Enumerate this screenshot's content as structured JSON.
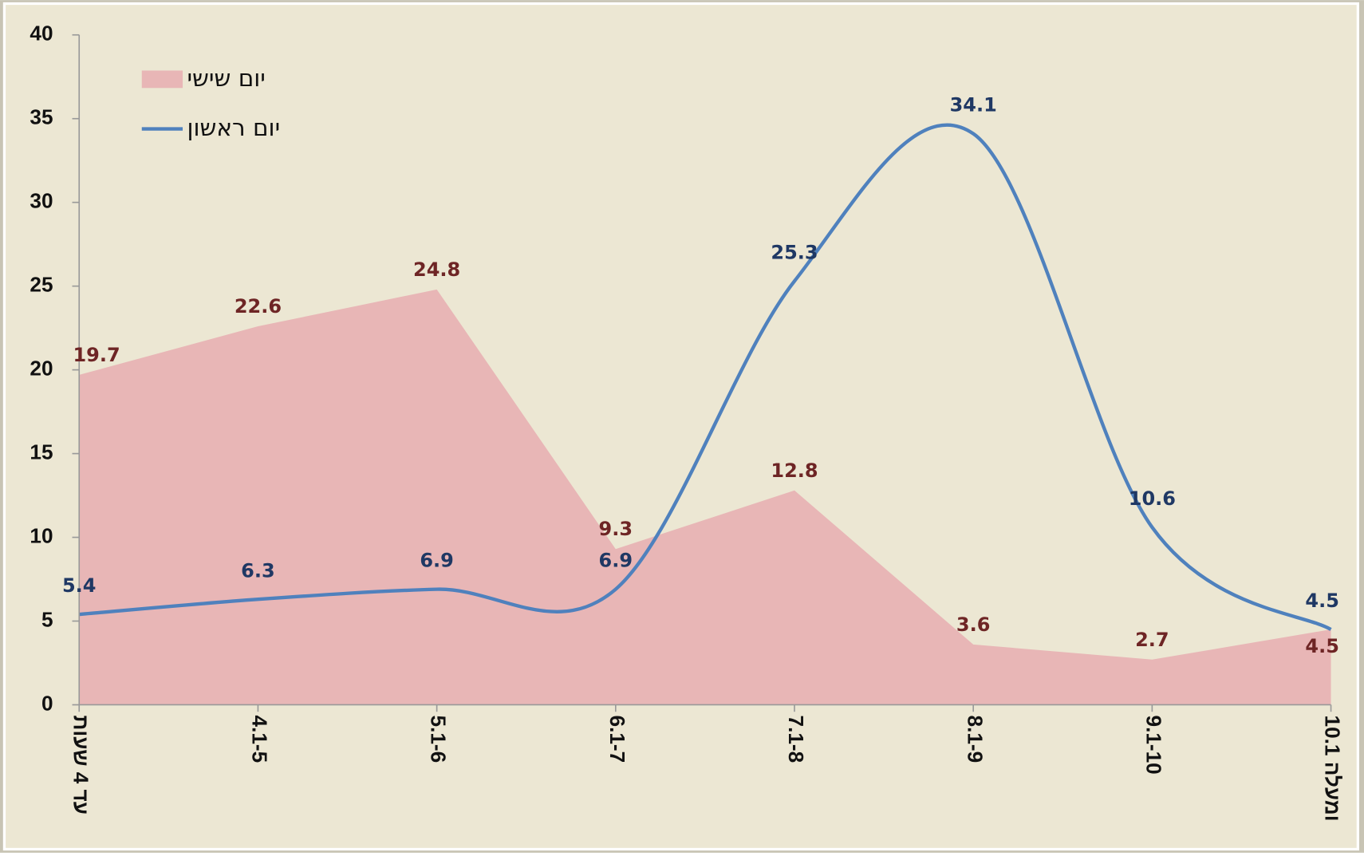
{
  "chart_data": {
    "type": "line",
    "categories": [
      "עד 4 שעות",
      "4.1-5",
      "5.1-6",
      "6.1-7",
      "7.1-8",
      "8.1-9",
      "9.1-10",
      "10.1 ומעלה"
    ],
    "series": [
      {
        "name": "יום שישי",
        "type": "area",
        "color": "#e8b6b6",
        "label_color": "#6e2525",
        "values": [
          19.7,
          22.6,
          24.8,
          9.3,
          12.8,
          3.6,
          2.7,
          4.5
        ]
      },
      {
        "name": "יום ראשון",
        "type": "line",
        "smooth": true,
        "color": "#4f81bd",
        "label_color": "#1f3864",
        "values": [
          5.4,
          6.3,
          6.9,
          6.9,
          25.3,
          34.1,
          10.6,
          4.5
        ]
      }
    ],
    "ylim": [
      0,
      40
    ],
    "yticks": [
      0,
      5,
      10,
      15,
      20,
      25,
      30,
      35,
      40
    ],
    "grid": false,
    "legend": "upper left"
  }
}
